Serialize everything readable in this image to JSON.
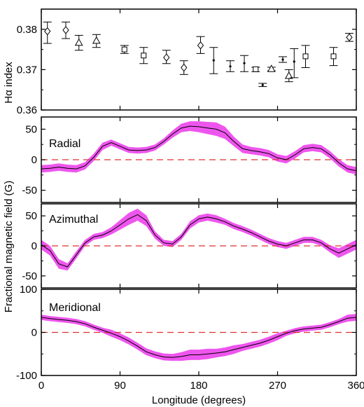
{
  "figure": {
    "xlabel": "Longitude (degrees)",
    "shared_ylabel": "Fractional magnetic field (G)",
    "colors": {
      "band": "#ee55ee",
      "line": "#000000",
      "zero_line": "#e03030",
      "axes": "#000000"
    }
  },
  "chart_data": [
    {
      "type": "scatter",
      "ylabel": "Hα index",
      "xlim": [
        0,
        360
      ],
      "ylim": [
        0.36,
        0.385
      ],
      "xticks": [
        0,
        90,
        180,
        270,
        360
      ],
      "yticks": [
        0.36,
        0.37,
        0.38
      ],
      "ytick_labels": [
        "0.36",
        "0.37",
        "0.38"
      ],
      "series": [
        {
          "marker": "diamond",
          "points": [
            {
              "x": 7,
              "y": 0.3795,
              "lo": 0.3765,
              "hi": 0.3818
            },
            {
              "x": 28,
              "y": 0.3798,
              "lo": 0.3777,
              "hi": 0.3818
            },
            {
              "x": 143,
              "y": 0.373,
              "lo": 0.3715,
              "hi": 0.3748
            },
            {
              "x": 163,
              "y": 0.3705,
              "lo": 0.3688,
              "hi": 0.3722
            },
            {
              "x": 182,
              "y": 0.376,
              "lo": 0.374,
              "hi": 0.3782
            },
            {
              "x": 352,
              "y": 0.378,
              "lo": 0.377,
              "hi": 0.379
            }
          ]
        },
        {
          "marker": "triangle",
          "points": [
            {
              "x": 43,
              "y": 0.3767,
              "lo": 0.3748,
              "hi": 0.3785
            },
            {
              "x": 63,
              "y": 0.3772,
              "lo": 0.3755,
              "hi": 0.3787
            },
            {
              "x": 263,
              "y": 0.3702,
              "lo": 0.3697,
              "hi": 0.3706
            },
            {
              "x": 283,
              "y": 0.3685,
              "lo": 0.367,
              "hi": 0.37
            }
          ]
        },
        {
          "marker": "square",
          "points": [
            {
              "x": 95,
              "y": 0.375,
              "lo": 0.374,
              "hi": 0.376
            },
            {
              "x": 117,
              "y": 0.3735,
              "lo": 0.3715,
              "hi": 0.3755
            },
            {
              "x": 245,
              "y": 0.3701,
              "lo": 0.3695,
              "hi": 0.3706
            },
            {
              "x": 302,
              "y": 0.3733,
              "lo": 0.3705,
              "hi": 0.376
            },
            {
              "x": 334,
              "y": 0.3733,
              "lo": 0.371,
              "hi": 0.3755
            }
          ]
        },
        {
          "marker": "dot",
          "points": [
            {
              "x": 197,
              "y": 0.3723,
              "lo": 0.369,
              "hi": 0.3755
            },
            {
              "x": 216,
              "y": 0.3708,
              "lo": 0.3695,
              "hi": 0.3722
            },
            {
              "x": 232,
              "y": 0.3716,
              "lo": 0.3695,
              "hi": 0.3735
            },
            {
              "x": 253,
              "y": 0.3662,
              "lo": 0.3658,
              "hi": 0.3666
            },
            {
              "x": 276,
              "y": 0.3725,
              "lo": 0.3718,
              "hi": 0.3732
            },
            {
              "x": 289,
              "y": 0.372,
              "lo": 0.368,
              "hi": 0.3752
            }
          ]
        }
      ]
    },
    {
      "type": "area",
      "annotation": "Radial",
      "xlim": [
        0,
        360
      ],
      "ylim": [
        -70,
        70
      ],
      "xticks": [
        0,
        90,
        180,
        270,
        360
      ],
      "yticks": [
        -50,
        0,
        50
      ],
      "ytick_labels": [
        "-50",
        "0",
        "50"
      ],
      "x": [
        0,
        10,
        20,
        30,
        40,
        50,
        60,
        70,
        80,
        90,
        100,
        110,
        120,
        130,
        140,
        150,
        160,
        170,
        180,
        190,
        200,
        210,
        220,
        230,
        240,
        250,
        260,
        270,
        280,
        290,
        300,
        310,
        320,
        330,
        340,
        350,
        360
      ],
      "y": [
        -15,
        -14,
        -12,
        -14,
        -15,
        -10,
        4,
        22,
        28,
        22,
        16,
        15,
        16,
        20,
        30,
        42,
        52,
        55,
        54,
        52,
        50,
        44,
        30,
        18,
        15,
        13,
        10,
        3,
        0,
        8,
        18,
        20,
        18,
        8,
        -5,
        -15,
        -18
      ],
      "band": [
        6,
        6,
        6,
        6,
        6,
        6,
        6,
        6,
        5,
        5,
        5,
        5,
        5,
        5,
        5,
        6,
        7,
        8,
        9,
        10,
        11,
        10,
        8,
        7,
        6,
        6,
        6,
        6,
        6,
        6,
        6,
        6,
        6,
        6,
        6,
        6,
        6
      ],
      "reference_line": 0
    },
    {
      "type": "area",
      "annotation": "Azimuthal",
      "xlim": [
        0,
        360
      ],
      "ylim": [
        -70,
        70
      ],
      "xticks": [
        0,
        90,
        180,
        270,
        360
      ],
      "yticks": [
        -50,
        0,
        50
      ],
      "ytick_labels": [
        "-50",
        "0",
        "50"
      ],
      "x": [
        0,
        10,
        20,
        30,
        40,
        50,
        60,
        70,
        80,
        90,
        100,
        110,
        120,
        130,
        140,
        150,
        160,
        170,
        180,
        190,
        200,
        210,
        220,
        230,
        240,
        250,
        260,
        270,
        280,
        290,
        300,
        310,
        320,
        330,
        340,
        350,
        360
      ],
      "y": [
        2,
        -8,
        -30,
        -35,
        -15,
        5,
        15,
        18,
        25,
        35,
        45,
        52,
        42,
        18,
        5,
        3,
        15,
        35,
        45,
        48,
        45,
        40,
        33,
        28,
        22,
        15,
        8,
        3,
        0,
        5,
        10,
        10,
        5,
        -5,
        -12,
        -5,
        2
      ],
      "band": [
        8,
        8,
        8,
        6,
        6,
        5,
        5,
        5,
        6,
        8,
        10,
        10,
        9,
        6,
        5,
        5,
        5,
        6,
        6,
        6,
        6,
        5,
        5,
        5,
        5,
        5,
        5,
        5,
        5,
        5,
        5,
        5,
        5,
        6,
        8,
        8,
        8
      ],
      "reference_line": 0
    },
    {
      "type": "area",
      "annotation": "Meridional",
      "xlim": [
        0,
        360
      ],
      "ylim": [
        -100,
        100
      ],
      "xticks": [
        0,
        90,
        180,
        270,
        360
      ],
      "xtick_labels": [
        "0",
        "90",
        "180",
        "270",
        "360"
      ],
      "yticks": [
        -100,
        0,
        100
      ],
      "ytick_labels": [
        "-100",
        "0",
        "100"
      ],
      "x": [
        0,
        10,
        20,
        30,
        40,
        50,
        60,
        70,
        80,
        90,
        100,
        110,
        120,
        130,
        140,
        150,
        160,
        170,
        180,
        190,
        200,
        210,
        220,
        230,
        240,
        250,
        260,
        270,
        280,
        290,
        300,
        310,
        320,
        330,
        340,
        350,
        360
      ],
      "y": [
        35,
        32,
        30,
        28,
        25,
        20,
        12,
        5,
        -2,
        -10,
        -20,
        -32,
        -45,
        -52,
        -57,
        -58,
        -56,
        -52,
        -52,
        -50,
        -48,
        -45,
        -40,
        -35,
        -30,
        -25,
        -18,
        -10,
        -2,
        4,
        8,
        10,
        12,
        18,
        25,
        33,
        35
      ],
      "band": [
        6,
        6,
        6,
        6,
        6,
        6,
        6,
        6,
        8,
        8,
        8,
        8,
        8,
        8,
        8,
        8,
        10,
        12,
        12,
        12,
        10,
        10,
        10,
        8,
        8,
        8,
        8,
        8,
        6,
        6,
        6,
        6,
        6,
        6,
        6,
        8,
        8
      ],
      "reference_line": 0
    }
  ]
}
